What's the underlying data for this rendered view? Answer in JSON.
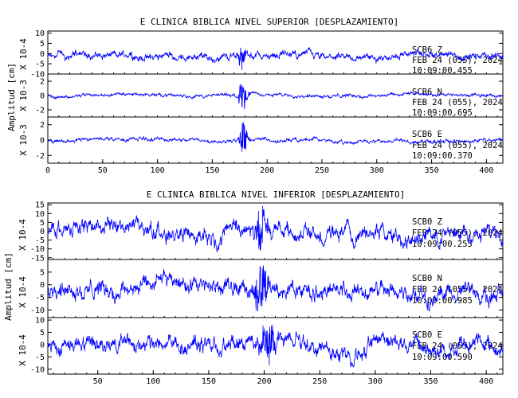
{
  "panels": [
    {
      "title": "E CLINICA BIBLICA NIVEL SUPERIOR [DESPLAZAMIENTO]",
      "ylabel": "Amplitud [cm]",
      "x_ticks": [
        "0",
        "50",
        "100",
        "150",
        "200",
        "250",
        "300",
        "350",
        "400"
      ],
      "traces": [
        {
          "scale": "X 10-4",
          "y_ticks": [
            -10,
            -5,
            0,
            5,
            10
          ],
          "ylim": [
            -10,
            11
          ],
          "station": "SCB6  Z",
          "date": "FEB 24 (055), 2024",
          "time": "10:09:00.455",
          "burst": [
            174,
            186
          ]
        },
        {
          "scale": "X 10-3",
          "y_ticks": [
            -2,
            0,
            2
          ],
          "ylim": [
            -3,
            3
          ],
          "station": "SCB6  N",
          "date": "FEB 24 (055), 2024",
          "time": "10:09:00.695",
          "burst": [
            174,
            190
          ]
        },
        {
          "scale": "X 10-3",
          "y_ticks": [
            -2,
            0,
            2
          ],
          "ylim": [
            -3,
            3
          ],
          "station": "SCB6  E",
          "date": "FEB 24 (055), 2024",
          "time": "10:09:00.370",
          "burst": [
            174,
            190
          ]
        }
      ]
    },
    {
      "title": "E CLINICA BIBLICA NIVEL INFERIOR [DESPLAZAMIENTO]",
      "ylabel": "Amplitud [cm]",
      "x_ticks": [
        "50",
        "100",
        "150",
        "200",
        "250",
        "300",
        "350",
        "400"
      ],
      "traces": [
        {
          "scale": "X 10-4",
          "y_ticks": [
            -15,
            -10,
            -5,
            0,
            5,
            10,
            15
          ],
          "ylim": [
            -16,
            16
          ],
          "station": "SCB0  Z",
          "date": "FEB 24 (055), 2024",
          "time": "10:09:00.255",
          "burst": [
            190,
            215
          ]
        },
        {
          "scale": "X 10-4",
          "y_ticks": [
            -10,
            -5,
            0,
            5
          ],
          "ylim": [
            -13,
            10
          ],
          "station": "SCB0  N",
          "date": "FEB 24 (055), 2024",
          "time": "10:09:00.985",
          "burst": [
            190,
            220
          ]
        },
        {
          "scale": "X 10-4",
          "y_ticks": [
            -10,
            -5,
            0,
            5,
            10
          ],
          "ylim": [
            -12,
            11
          ],
          "station": "SCB0  E",
          "date": "FEB 24 (055), 2024",
          "time": "10:09:00.590",
          "burst": [
            195,
            225
          ]
        }
      ]
    }
  ],
  "chart_data": [
    {
      "type": "line",
      "title": "E CLINICA BIBLICA NIVEL SUPERIOR [DESPLAZAMIENTO]",
      "ylabel": "Amplitud [cm]",
      "xlim": [
        0,
        415
      ],
      "series": [
        {
          "name": "SCB6  Z",
          "ylim": [
            -10,
            11
          ],
          "unit_scale": "X 10-4"
        },
        {
          "name": "SCB6  N",
          "ylim": [
            -3,
            3
          ],
          "unit_scale": "X 10-3"
        },
        {
          "name": "SCB6  E",
          "ylim": [
            -3,
            3
          ],
          "unit_scale": "X 10-3"
        }
      ],
      "line_color": "#0000ff"
    },
    {
      "type": "line",
      "title": "E CLINICA BIBLICA NIVEL INFERIOR [DESPLAZAMIENTO]",
      "ylabel": "Amplitud [cm]",
      "xlim": [
        5,
        415
      ],
      "series": [
        {
          "name": "SCB0  Z",
          "ylim": [
            -16,
            16
          ],
          "unit_scale": "X 10-4"
        },
        {
          "name": "SCB0  N",
          "ylim": [
            -13,
            10
          ],
          "unit_scale": "X 10-4"
        },
        {
          "name": "SCB0  E",
          "ylim": [
            -12,
            11
          ],
          "unit_scale": "X 10-4"
        }
      ],
      "line_color": "#0000ff"
    }
  ]
}
